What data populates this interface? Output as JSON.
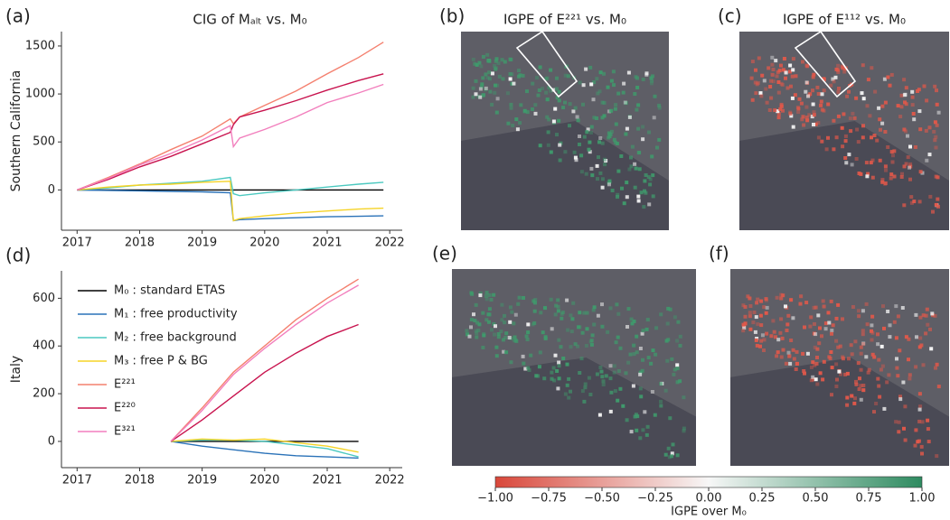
{
  "chart_data": [
    {
      "type": "line",
      "panel_label": "(a)",
      "title": "CIG of Mₐₗₜ vs. M₀",
      "ylabel": "Southern California",
      "x": [
        2017,
        2017.5,
        2018,
        2018.5,
        2019,
        2019.45,
        2019.5,
        2019.6,
        2020,
        2020.5,
        2021,
        2021.5,
        2021.9
      ],
      "xlim": [
        2016.75,
        2022.2
      ],
      "xticks": [
        2017,
        2018,
        2019,
        2020,
        2021,
        2022
      ],
      "ylim": [
        -420,
        1650
      ],
      "yticks": [
        0,
        500,
        1000,
        1500
      ],
      "series": [
        {
          "color": "#000000",
          "values": [
            0,
            0,
            0,
            0,
            0,
            0,
            0,
            0,
            0,
            0,
            0,
            0,
            0
          ]
        },
        {
          "color": "#2a72b8",
          "values": [
            0,
            -5,
            -10,
            -15,
            -20,
            -30,
            -320,
            -310,
            -300,
            -290,
            -280,
            -275,
            -270
          ]
        },
        {
          "color": "#4cc9c0",
          "values": [
            0,
            20,
            50,
            70,
            90,
            130,
            -40,
            -60,
            -30,
            0,
            30,
            60,
            80
          ]
        },
        {
          "color": "#f5d327",
          "values": [
            0,
            30,
            50,
            60,
            80,
            90,
            -320,
            -300,
            -270,
            -240,
            -220,
            -200,
            -190
          ]
        },
        {
          "color": "#f4806f",
          "values": [
            0,
            130,
            270,
            420,
            560,
            740,
            690,
            760,
            880,
            1030,
            1210,
            1380,
            1540
          ]
        },
        {
          "color": "#c8134e",
          "values": [
            0,
            110,
            240,
            350,
            480,
            600,
            680,
            760,
            830,
            930,
            1040,
            1140,
            1210
          ]
        },
        {
          "color": "#f27fbd",
          "values": [
            0,
            120,
            260,
            380,
            520,
            670,
            450,
            540,
            630,
            760,
            910,
            1010,
            1100
          ]
        }
      ]
    },
    {
      "type": "line",
      "panel_label": "(d)",
      "ylabel": "Italy",
      "legend": "upper left",
      "x": [
        2018.5,
        2019,
        2019.5,
        2020,
        2020.5,
        2021,
        2021.5
      ],
      "xlim": [
        2016.75,
        2022.2
      ],
      "xticks": [
        2017,
        2018,
        2019,
        2020,
        2021,
        2022
      ],
      "ylim": [
        -110,
        715
      ],
      "yticks": [
        0,
        200,
        400,
        600
      ],
      "series": [
        {
          "name": "M₀ : standard ETAS",
          "color": "#000000",
          "values": [
            0,
            0,
            0,
            0,
            0,
            0,
            0
          ]
        },
        {
          "name": "M₁ : free productivity",
          "color": "#2a72b8",
          "values": [
            0,
            -20,
            -35,
            -50,
            -60,
            -65,
            -70
          ]
        },
        {
          "name": "M₂ : free background",
          "color": "#4cc9c0",
          "values": [
            0,
            5,
            5,
            0,
            -15,
            -30,
            -65
          ]
        },
        {
          "name": "M₃ : free P & BG",
          "color": "#f5d327",
          "values": [
            0,
            10,
            5,
            10,
            -5,
            -20,
            -45
          ]
        },
        {
          "name": "E²²¹",
          "color": "#f4806f",
          "values": [
            0,
            140,
            290,
            400,
            510,
            600,
            680
          ]
        },
        {
          "name": "E²²⁰",
          "color": "#c8134e",
          "values": [
            0,
            90,
            190,
            290,
            370,
            440,
            490
          ]
        },
        {
          "name": "E³²¹",
          "color": "#f27fbd",
          "values": [
            0,
            130,
            280,
            390,
            490,
            580,
            655
          ]
        }
      ]
    },
    {
      "type": "colorbar",
      "xlabel": "IGPE over M₀",
      "colors": [
        "#d9473a",
        "#f7f7f7",
        "#2e8b60"
      ],
      "xlim": [
        -1,
        1
      ],
      "xticks": [
        {
          "value": -1,
          "label": "−1.00"
        },
        {
          "value": -0.75,
          "label": "−0.75"
        },
        {
          "value": -0.5,
          "label": "−0.50"
        },
        {
          "value": -0.25,
          "label": "−0.25"
        },
        {
          "value": 0,
          "label": "0.00"
        },
        {
          "value": 0.25,
          "label": "0.25"
        },
        {
          "value": 0.5,
          "label": "0.50"
        },
        {
          "value": 0.75,
          "label": "0.75"
        },
        {
          "value": 1,
          "label": "1.00"
        }
      ]
    }
  ],
  "maps": [
    {
      "panel_label": "(b)",
      "title": "IGPE of E²²¹ vs. M₀"
    },
    {
      "panel_label": "(c)",
      "title": "IGPE of E¹¹² vs. M₀"
    },
    {
      "panel_label": "(e)"
    },
    {
      "panel_label": "(f)"
    }
  ]
}
